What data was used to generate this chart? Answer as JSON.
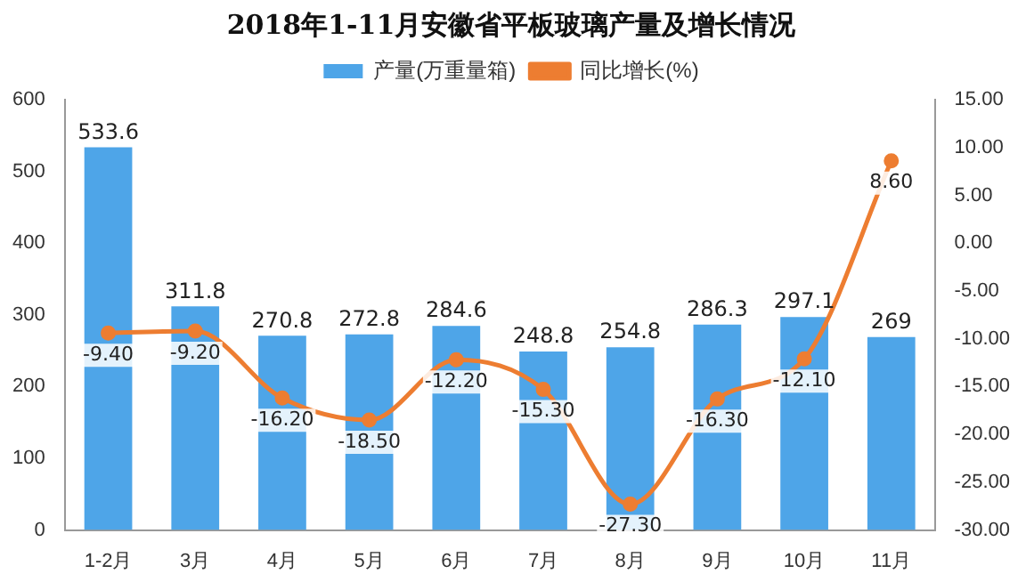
{
  "chart_data": {
    "type": "bar",
    "title": "2018年1-11月安徽省平板玻璃产量及增长情况",
    "categories": [
      "1-2月",
      "3月",
      "4月",
      "5月",
      "6月",
      "7月",
      "8月",
      "9月",
      "10月",
      "11月"
    ],
    "series": [
      {
        "name": "产量(万重量箱)",
        "color": "#4ea5e8",
        "values": [
          533.6,
          311.8,
          270.8,
          272.8,
          284.6,
          248.8,
          254.8,
          286.3,
          297.1,
          269
        ],
        "value_labels": [
          "533.6",
          "311.8",
          "270.8",
          "272.8",
          "284.6",
          "248.8",
          "254.8",
          "286.3",
          "297.1",
          "269"
        ]
      },
      {
        "name": "同比增长(%)",
        "type": "line",
        "axis": "y2",
        "color": "#ed7d31",
        "values": [
          -9.4,
          -9.2,
          -16.2,
          -18.5,
          -12.2,
          -15.3,
          -27.3,
          -16.3,
          -12.1,
          8.6
        ],
        "value_labels": [
          "-9.40",
          "-9.20",
          "-16.20",
          "-18.50",
          "-12.20",
          "-15.30",
          "-27.30",
          "-16.30",
          "-12.10",
          "8.60"
        ]
      }
    ],
    "ylim": [
      0,
      600
    ],
    "yticks": [
      0,
      100,
      200,
      300,
      400,
      500,
      600
    ],
    "y2lim": [
      -30,
      15
    ],
    "y2ticks": [
      {
        "value": -30,
        "label": "-30.00"
      },
      {
        "value": -25,
        "label": "-25.00"
      },
      {
        "value": -20,
        "label": "-20.00"
      },
      {
        "value": -15,
        "label": "-15.00"
      },
      {
        "value": -10,
        "label": "-10.00"
      },
      {
        "value": -5,
        "label": "-5.00"
      },
      {
        "value": 0,
        "label": "0.00"
      },
      {
        "value": 5,
        "label": "5.00"
      },
      {
        "value": 10,
        "label": "10.00"
      },
      {
        "value": 15,
        "label": "15.00"
      }
    ],
    "legend": "top",
    "marker": "circle",
    "line_style": "solid",
    "grid": false
  }
}
